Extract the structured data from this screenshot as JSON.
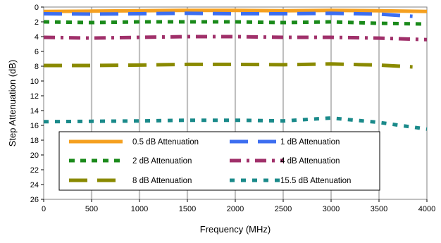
{
  "chart_data": {
    "type": "line",
    "title": "",
    "xlabel": "Frequency (MHz)",
    "ylabel": "Step Attenuation (dB)",
    "xlim": [
      0,
      4000
    ],
    "ylim": [
      0,
      26
    ],
    "y_inverted": true,
    "x_ticks": [
      0,
      500,
      1000,
      1500,
      2000,
      2500,
      3000,
      3500,
      4000
    ],
    "y_ticks": [
      0,
      2,
      4,
      6,
      8,
      10,
      12,
      14,
      16,
      18,
      20,
      22,
      24,
      26
    ],
    "grid": "vertical",
    "legend_position": "bottom-center",
    "series": [
      {
        "name": "0.5 dB Attenuation",
        "color": "#F5A020",
        "dash": "solid",
        "x": [
          0,
          500,
          1000,
          1500,
          2000,
          2500,
          3000,
          3500,
          4000
        ],
        "y": [
          0.6,
          0.55,
          0.5,
          0.45,
          0.45,
          0.5,
          0.45,
          0.5,
          0.6
        ]
      },
      {
        "name": "1 dB Attenuation",
        "color": "#3D6EF0",
        "dash": "long",
        "x": [
          0,
          500,
          1000,
          1500,
          2000,
          2500,
          3000,
          3500,
          3850
        ],
        "y": [
          0.9,
          0.95,
          0.9,
          0.85,
          0.9,
          0.9,
          0.85,
          0.95,
          1.25
        ]
      },
      {
        "name": "2 dB Attenuation",
        "color": "#1A8A1A",
        "dash": "short",
        "x": [
          0,
          500,
          1000,
          1500,
          2000,
          2500,
          3000,
          3500,
          4000
        ],
        "y": [
          2.0,
          2.1,
          2.0,
          2.0,
          2.0,
          2.1,
          2.0,
          2.2,
          2.3
        ]
      },
      {
        "name": "4 dB Attenuation",
        "color": "#A0306A",
        "dash": "dashdot",
        "x": [
          0,
          500,
          1000,
          1500,
          2000,
          2500,
          3000,
          3500,
          4000
        ],
        "y": [
          4.1,
          4.2,
          4.1,
          4.0,
          4.0,
          4.1,
          4.1,
          4.2,
          4.4
        ]
      },
      {
        "name": "8 dB Attenuation",
        "color": "#8A8A00",
        "dash": "long",
        "x": [
          0,
          500,
          1000,
          1500,
          2000,
          2500,
          3000,
          3500,
          3850
        ],
        "y": [
          7.9,
          7.9,
          7.85,
          7.75,
          7.75,
          7.8,
          7.7,
          7.85,
          8.1
        ]
      },
      {
        "name": "15.5 dB Attenuation",
        "color": "#1A8A8A",
        "dash": "dotted",
        "x": [
          0,
          500,
          1000,
          1500,
          2000,
          2500,
          3000,
          3500,
          4000
        ],
        "y": [
          15.5,
          15.45,
          15.4,
          15.3,
          15.3,
          15.4,
          15.0,
          15.6,
          16.5
        ]
      }
    ]
  }
}
